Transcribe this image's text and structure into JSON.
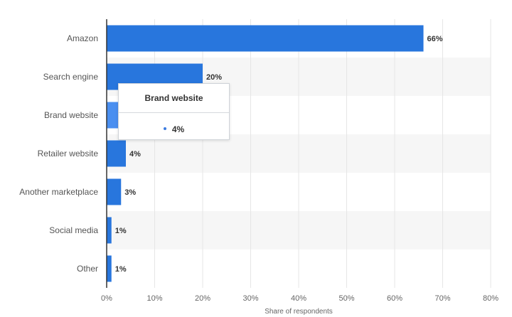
{
  "chart_data": {
    "type": "bar",
    "orientation": "horizontal",
    "categories": [
      "Amazon",
      "Search engine",
      "Brand website",
      "Retailer website",
      "Another marketplace",
      "Social media",
      "Other"
    ],
    "values": [
      66,
      20,
      4,
      4,
      3,
      1,
      1
    ],
    "value_labels": [
      "66%",
      "20%",
      "4%",
      "4%",
      "3%",
      "1%",
      "1%"
    ],
    "xlabel": "Share of respondents",
    "ylabel": "",
    "xlim": [
      0,
      80
    ],
    "xticks": [
      0,
      10,
      20,
      30,
      40,
      50,
      60,
      70,
      80
    ],
    "xtick_labels": [
      "0%",
      "10%",
      "20%",
      "30%",
      "40%",
      "50%",
      "60%",
      "70%",
      "80%"
    ],
    "grid": true,
    "bar_color": "#2876dd",
    "highlight_color": "#4a8ff0",
    "band_color": "#f6f6f6"
  },
  "tooltip": {
    "title": "Brand website",
    "value": "4%",
    "category_index": 2
  }
}
